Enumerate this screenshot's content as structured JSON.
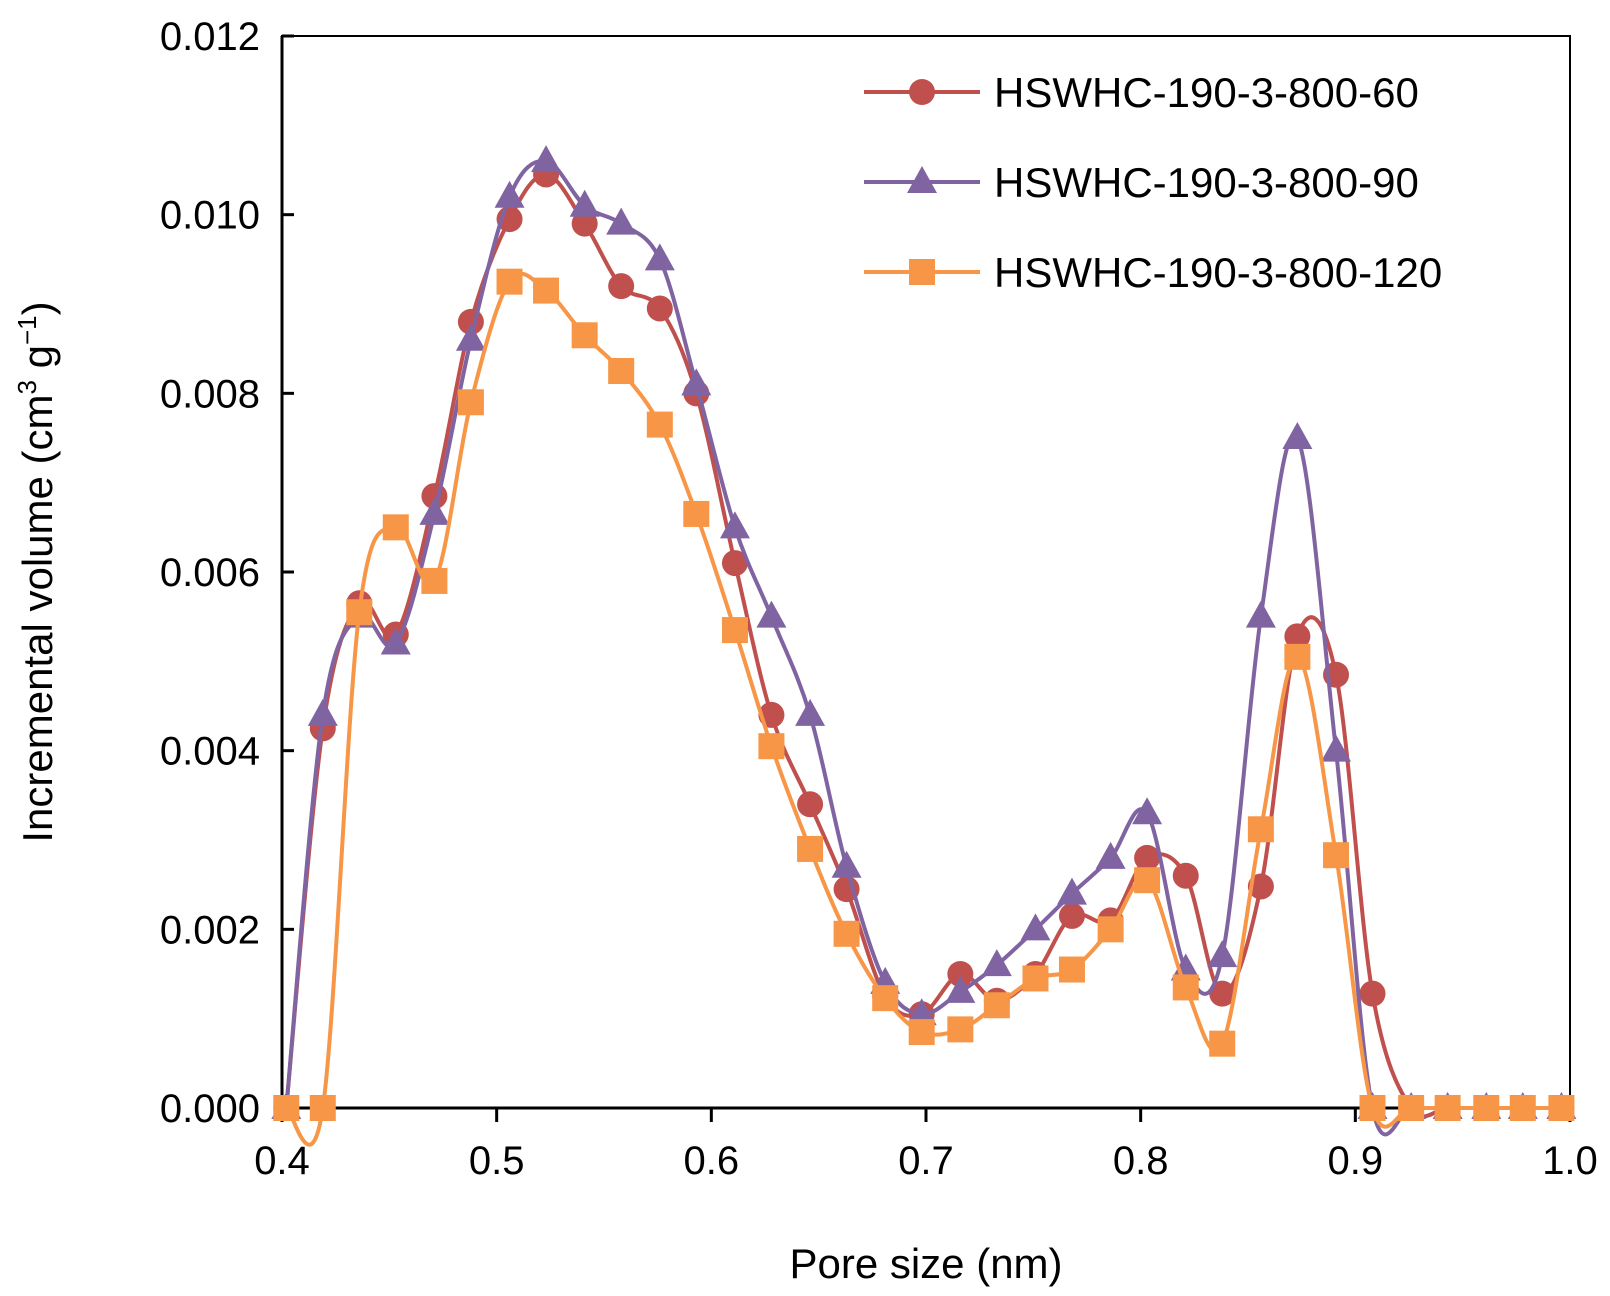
{
  "chart_data": {
    "type": "line",
    "title": "",
    "xlabel": "Pore size (nm)",
    "ylabel": "Incremental volume (cm",
    "ylabel_unit_sup1": "3",
    "ylabel_unit_mid": " g",
    "ylabel_unit_sup2": "−1",
    "ylabel_close": ")",
    "xlim": [
      0.4,
      1.0
    ],
    "ylim": [
      0.0,
      0.012
    ],
    "xticks": [
      "0.4",
      "0.5",
      "0.6",
      "0.7",
      "0.8",
      "0.9",
      "1.0"
    ],
    "yticks": [
      "0.000",
      "0.002",
      "0.004",
      "0.006",
      "0.008",
      "0.010",
      "0.012"
    ],
    "grid": false,
    "legend_position": "top-right",
    "series": [
      {
        "name": "HSWHC-190-3-800-60",
        "color": "#C0504D",
        "marker": "circle",
        "x": [
          0.402,
          0.419,
          0.436,
          0.453,
          0.471,
          0.488,
          0.506,
          0.523,
          0.541,
          0.558,
          0.576,
          0.593,
          0.611,
          0.628,
          0.646,
          0.663,
          0.681,
          0.698,
          0.716,
          0.733,
          0.751,
          0.768,
          0.786,
          0.803,
          0.821,
          0.838,
          0.856,
          0.873,
          0.891,
          0.908,
          0.926,
          0.943,
          0.961,
          0.978,
          0.996
        ],
        "y": [
          0.0,
          0.00425,
          0.00565,
          0.0053,
          0.00685,
          0.0088,
          0.00995,
          0.01045,
          0.0099,
          0.0092,
          0.00895,
          0.008,
          0.0061,
          0.0044,
          0.0034,
          0.00245,
          0.00125,
          0.00105,
          0.0015,
          0.0012,
          0.0015,
          0.00215,
          0.0021,
          0.0028,
          0.0026,
          0.00128,
          0.00248,
          0.00528,
          0.00485,
          0.00128,
          0.0,
          0.0,
          0.0,
          0.0,
          0.0
        ]
      },
      {
        "name": "HSWHC-190-3-800-90",
        "color": "#8064A2",
        "marker": "triangle",
        "x": [
          0.402,
          0.419,
          0.436,
          0.453,
          0.471,
          0.488,
          0.506,
          0.523,
          0.541,
          0.558,
          0.576,
          0.593,
          0.611,
          0.628,
          0.646,
          0.663,
          0.681,
          0.698,
          0.716,
          0.733,
          0.751,
          0.768,
          0.786,
          0.803,
          0.821,
          0.838,
          0.856,
          0.873,
          0.891,
          0.908,
          0.926,
          0.943,
          0.961,
          0.978,
          0.996
        ],
        "y": [
          0.0,
          0.0044,
          0.0055,
          0.0052,
          0.00665,
          0.0086,
          0.0102,
          0.0106,
          0.0101,
          0.0099,
          0.0095,
          0.0081,
          0.0065,
          0.0055,
          0.0044,
          0.0027,
          0.0014,
          0.00105,
          0.0013,
          0.0016,
          0.002,
          0.0024,
          0.0028,
          0.0033,
          0.00155,
          0.0017,
          0.0055,
          0.0075,
          0.004,
          0.0,
          0.0,
          0.0,
          0.0,
          0.0,
          0.0
        ]
      },
      {
        "name": "HSWHC-190-3-800-120",
        "color": "#F79646",
        "marker": "square",
        "x": [
          0.402,
          0.419,
          0.436,
          0.453,
          0.471,
          0.488,
          0.506,
          0.523,
          0.541,
          0.558,
          0.576,
          0.593,
          0.611,
          0.628,
          0.646,
          0.663,
          0.681,
          0.698,
          0.716,
          0.733,
          0.751,
          0.768,
          0.786,
          0.803,
          0.821,
          0.838,
          0.856,
          0.873,
          0.891,
          0.908,
          0.926,
          0.943,
          0.961,
          0.978,
          0.996
        ],
        "y": [
          0.0,
          0.0,
          0.00555,
          0.0065,
          0.0059,
          0.0079,
          0.00925,
          0.00915,
          0.00865,
          0.00825,
          0.00765,
          0.00665,
          0.00535,
          0.00405,
          0.0029,
          0.00195,
          0.00123,
          0.00085,
          0.00088,
          0.00115,
          0.00145,
          0.00155,
          0.002,
          0.00255,
          0.00135,
          0.00072,
          0.00312,
          0.00505,
          0.00283,
          0.0,
          0.0,
          0.0,
          0.0,
          0.0,
          0.0
        ]
      }
    ]
  }
}
